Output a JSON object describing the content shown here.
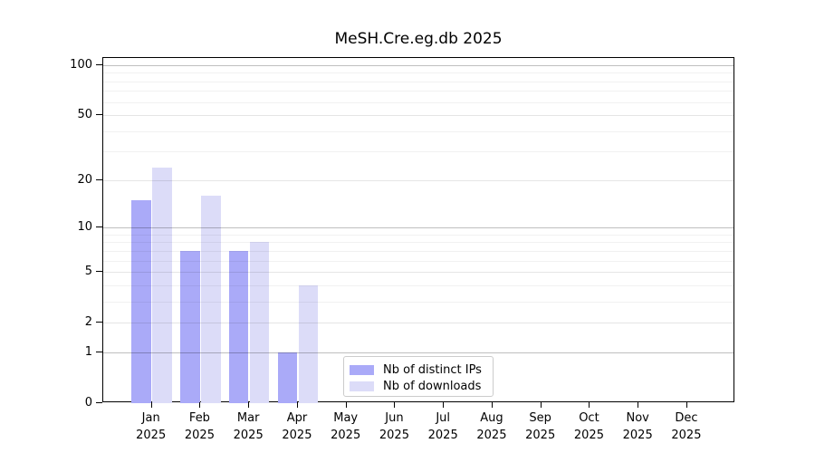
{
  "chart_data": {
    "type": "bar",
    "title": "MeSH.Cre.eg.db 2025",
    "categories": [
      "Jan 2025",
      "Feb 2025",
      "Mar 2025",
      "Apr 2025",
      "May 2025",
      "Jun 2025",
      "Jul 2025",
      "Aug 2025",
      "Sep 2025",
      "Oct 2025",
      "Nov 2025",
      "Dec 2025"
    ],
    "series": [
      {
        "name": "Nb of distinct IPs",
        "color": "#aaaaf8",
        "values": [
          15,
          7,
          7,
          1,
          0,
          0,
          0,
          0,
          0,
          0,
          0,
          0
        ]
      },
      {
        "name": "Nb of downloads",
        "color": "#dcdcf8",
        "values": [
          24,
          16,
          8,
          4,
          0,
          0,
          0,
          0,
          0,
          0,
          0,
          0
        ]
      }
    ],
    "xlabel": "",
    "ylabel": "",
    "yscale": "log1p",
    "ylim": [
      0,
      100
    ],
    "yticks": [
      0,
      1,
      2,
      5,
      10,
      20,
      50,
      100
    ],
    "ytick_major": [
      1,
      10,
      100
    ],
    "ytick_minor_grid": [
      3,
      4,
      6,
      7,
      8,
      9,
      30,
      40,
      60,
      70,
      80,
      90
    ],
    "grid": true,
    "legend_position": "inside-bottom-center"
  },
  "colors": {
    "background": "#ffffff",
    "spine": "#000000",
    "text": "#000000",
    "legend_border": "#cccccc",
    "bar_distinct_ips": "#aaaaf8",
    "bar_downloads": "#dcdcf8"
  }
}
